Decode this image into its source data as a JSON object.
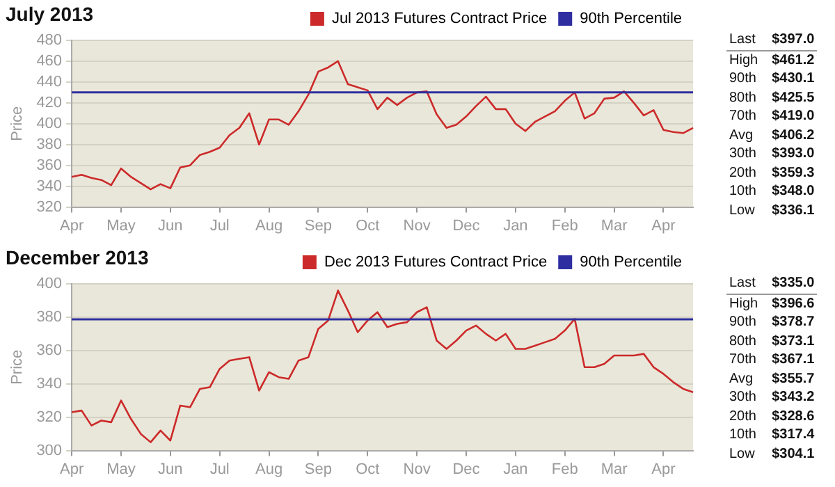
{
  "chart_data": [
    {
      "type": "line",
      "title": "July 2013",
      "ylabel": "Price",
      "legend": "top right",
      "grid": "y",
      "marker": "none",
      "categories": [
        "Apr",
        null,
        null,
        null,
        null,
        "May",
        null,
        null,
        null,
        null,
        "Jun",
        null,
        null,
        null,
        null,
        "Jul",
        null,
        null,
        null,
        null,
        "Aug",
        null,
        null,
        null,
        null,
        "Sep",
        null,
        null,
        null,
        null,
        "Oct",
        null,
        null,
        null,
        null,
        "Nov",
        null,
        null,
        null,
        null,
        "Dec",
        null,
        null,
        null,
        null,
        "Jan",
        null,
        null,
        null,
        null,
        "Feb",
        null,
        null,
        null,
        null,
        "Mar",
        null,
        null,
        null,
        null,
        "Apr",
        null,
        null,
        null
      ],
      "ylim": [
        320,
        480
      ],
      "yticks": [
        320,
        340,
        360,
        380,
        400,
        420,
        440,
        460,
        480
      ],
      "series": [
        {
          "name": "Jul 2013 Futures Contract Price",
          "color": "#cc2a2a",
          "values": [
            349,
            351,
            348,
            346,
            341,
            357,
            349,
            343,
            337,
            342,
            338,
            358,
            360,
            370,
            373,
            377,
            389,
            396,
            410,
            380,
            404,
            404,
            399,
            412,
            428,
            450,
            454,
            460,
            438,
            435,
            432,
            414,
            425,
            418,
            425,
            430,
            431,
            409,
            396,
            399,
            407,
            417,
            426,
            414,
            414,
            400,
            393,
            402,
            407,
            412,
            422,
            430,
            405,
            410,
            424,
            425,
            431,
            420,
            408,
            413,
            394,
            392,
            391,
            396
          ]
        }
      ],
      "ref_lines": [
        {
          "axis": "y",
          "value": 430.1,
          "label": "90th Percentile",
          "color": "#2e2ea0"
        }
      ],
      "annotations": [
        "Last $397.0",
        "High $461.2",
        "90th $430.1",
        "80th $425.5",
        "70th $419.0",
        "Avg $406.2",
        "30th $393.0",
        "20th $359.3",
        "10th $348.0",
        "Low $336.1"
      ]
    },
    {
      "type": "line",
      "title": "December 2013",
      "ylabel": "Price",
      "legend": "top right",
      "grid": "y",
      "marker": "none",
      "categories": [
        "Apr",
        null,
        null,
        null,
        null,
        "May",
        null,
        null,
        null,
        null,
        "Jun",
        null,
        null,
        null,
        null,
        "Jul",
        null,
        null,
        null,
        null,
        "Aug",
        null,
        null,
        null,
        null,
        "Sep",
        null,
        null,
        null,
        null,
        "Oct",
        null,
        null,
        null,
        null,
        "Nov",
        null,
        null,
        null,
        null,
        "Dec",
        null,
        null,
        null,
        null,
        "Jan",
        null,
        null,
        null,
        null,
        "Feb",
        null,
        null,
        null,
        null,
        "Mar",
        null,
        null,
        null,
        null,
        "Apr",
        null,
        null,
        null
      ],
      "ylim": [
        300,
        400
      ],
      "yticks": [
        300,
        320,
        340,
        360,
        380,
        400
      ],
      "series": [
        {
          "name": "Dec 2013 Futures Contract Price",
          "color": "#cc2a2a",
          "values": [
            323,
            324,
            315,
            318,
            317,
            330,
            319,
            310,
            305,
            312,
            306,
            327,
            326,
            337,
            338,
            349,
            354,
            355,
            356,
            336,
            347,
            344,
            343,
            354,
            356,
            373,
            378,
            396,
            384,
            371,
            378,
            383,
            374,
            376,
            377,
            383,
            386,
            366,
            361,
            366,
            372,
            375,
            370,
            366,
            370,
            361,
            361,
            363,
            365,
            367,
            372,
            379,
            350,
            350,
            352,
            357,
            357,
            357,
            358,
            350,
            346,
            341,
            337,
            335
          ]
        }
      ],
      "ref_lines": [
        {
          "axis": "y",
          "value": 378.7,
          "label": "90th Percentile",
          "color": "#2e2ea0"
        }
      ],
      "annotations": [
        "Last $335.0",
        "High $396.6",
        "90th $378.7",
        "80th $373.1",
        "70th $367.1",
        "Avg $355.7",
        "30th $343.2",
        "20th $328.6",
        "10th $317.4",
        "Low $304.1"
      ]
    }
  ]
}
